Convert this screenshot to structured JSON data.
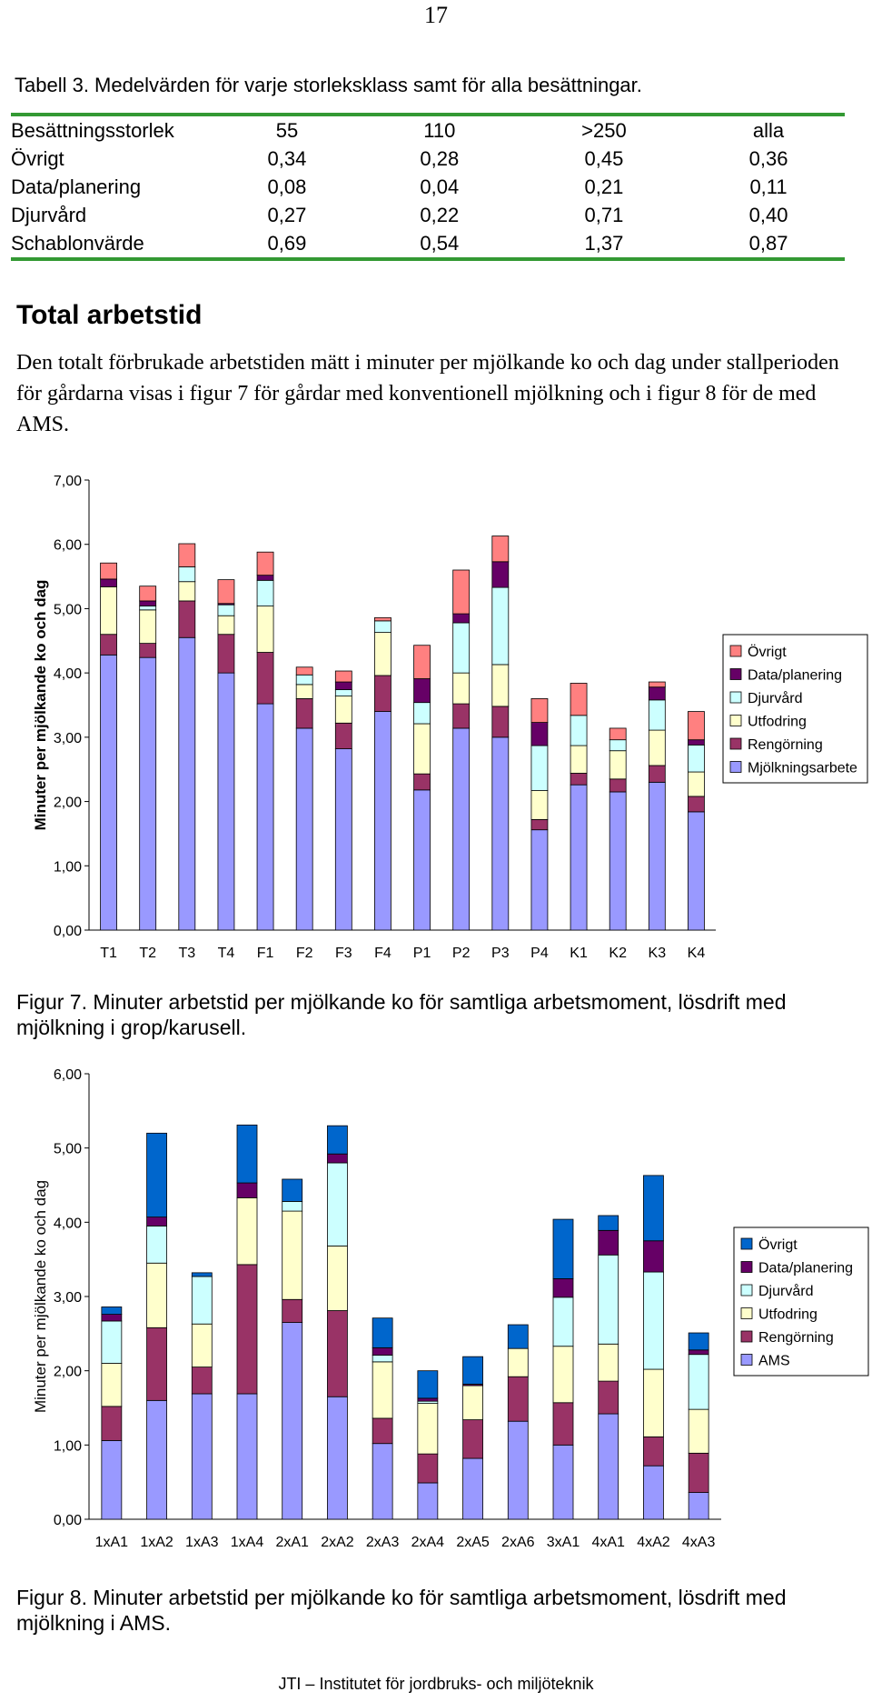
{
  "page": {
    "number": "17",
    "footer": "JTI – Institutet för jordbruks- och miljöteknik"
  },
  "table": {
    "caption": "Tabell 3. Medelvärden för varje storleksklass samt för alla besättningar.",
    "header": [
      "Besättningsstorlek",
      "55",
      "110",
      ">250",
      "alla"
    ],
    "rows": [
      [
        "Övrigt",
        "0,34",
        "0,28",
        "0,45",
        "0,36"
      ],
      [
        "Data/planering",
        "0,08",
        "0,04",
        "0,21",
        "0,11"
      ],
      [
        "Djurvård",
        "0,27",
        "0,22",
        "0,71",
        "0,40"
      ],
      [
        "Schablonvärde",
        "0,69",
        "0,54",
        "1,37",
        "0,87"
      ]
    ]
  },
  "section": {
    "heading": "Total arbetstid",
    "body": "Den totalt förbrukade arbetstiden mätt i minuter per mjölkande ko och dag under stallperioden för gårdarna visas i figur 7 för gårdar med konventionell mjölkning och i figur 8 för de med AMS."
  },
  "figure7_caption": "Figur 7. Minuter arbetstid per mjölkande ko för samtliga arbetsmoment, lösdrift med mjölkning i grop/karusell.",
  "figure8_caption": "Figur 8. Minuter arbetstid per mjölkande ko för samtliga arbetsmoment, lösdrift med mjölkning i AMS.",
  "chart_data": [
    {
      "type": "bar",
      "stacked": true,
      "title": "",
      "xlabel": "",
      "ylabel": "Minuter per mjölkande ko och dag",
      "ylim": [
        0,
        7
      ],
      "yticks": [
        "0,00",
        "1,00",
        "2,00",
        "3,00",
        "4,00",
        "5,00",
        "6,00",
        "7,00"
      ],
      "categories": [
        "T1",
        "T2",
        "T3",
        "T4",
        "F1",
        "F2",
        "F3",
        "F4",
        "P1",
        "P2",
        "P3",
        "P4",
        "K1",
        "K2",
        "K3",
        "K4"
      ],
      "legend_position": "right",
      "series": [
        {
          "name": "Mjölkningsarbete",
          "color": "#9999ff",
          "values": [
            4.28,
            4.24,
            4.55,
            4.0,
            3.52,
            3.14,
            2.82,
            3.4,
            2.18,
            3.14,
            3.0,
            1.56,
            2.26,
            2.15,
            2.3,
            1.84
          ]
        },
        {
          "name": "Rengörning",
          "color": "#993366",
          "values": [
            0.32,
            0.22,
            0.57,
            0.6,
            0.8,
            0.46,
            0.4,
            0.56,
            0.25,
            0.38,
            0.48,
            0.16,
            0.18,
            0.2,
            0.26,
            0.24
          ]
        },
        {
          "name": "Utfodring",
          "color": "#ffffcc",
          "values": [
            0.74,
            0.52,
            0.3,
            0.29,
            0.72,
            0.22,
            0.42,
            0.67,
            0.78,
            0.48,
            0.65,
            0.45,
            0.43,
            0.44,
            0.55,
            0.38
          ]
        },
        {
          "name": "Djurvård",
          "color": "#ccffff",
          "values": [
            0.0,
            0.06,
            0.23,
            0.17,
            0.4,
            0.15,
            0.1,
            0.18,
            0.33,
            0.78,
            1.2,
            0.7,
            0.47,
            0.17,
            0.47,
            0.42
          ]
        },
        {
          "name": "Data/planering",
          "color": "#660066",
          "values": [
            0.12,
            0.08,
            0.0,
            0.02,
            0.08,
            0.0,
            0.12,
            0.0,
            0.37,
            0.14,
            0.4,
            0.36,
            0.0,
            0.0,
            0.2,
            0.08
          ]
        },
        {
          "name": "Övrigt",
          "color": "#ff8080",
          "values": [
            0.25,
            0.23,
            0.36,
            0.37,
            0.36,
            0.12,
            0.17,
            0.05,
            0.52,
            0.68,
            0.4,
            0.37,
            0.5,
            0.18,
            0.08,
            0.44
          ]
        }
      ]
    },
    {
      "type": "bar",
      "stacked": true,
      "title": "",
      "xlabel": "",
      "ylabel": "Minuter per mjölkande ko och dag",
      "ylim": [
        0,
        6
      ],
      "yticks": [
        "0,00",
        "1,00",
        "2,00",
        "3,00",
        "4,00",
        "5,00",
        "6,00"
      ],
      "categories": [
        "1xA1",
        "1xA2",
        "1xA3",
        "1xA4",
        "2xA1",
        "2xA2",
        "2xA3",
        "2xA4",
        "2xA5",
        "2xA6",
        "3xA1",
        "4xA1",
        "4xA2",
        "4xA3"
      ],
      "legend_position": "right",
      "series": [
        {
          "name": "AMS",
          "color": "#9999ff",
          "values": [
            1.06,
            1.6,
            1.69,
            1.69,
            2.65,
            1.65,
            1.02,
            0.49,
            0.82,
            1.32,
            1.0,
            1.42,
            0.72,
            0.36
          ]
        },
        {
          "name": "Rengörning",
          "color": "#993366",
          "values": [
            0.46,
            0.98,
            0.36,
            1.74,
            0.31,
            1.16,
            0.34,
            0.39,
            0.52,
            0.6,
            0.57,
            0.44,
            0.39,
            0.53
          ]
        },
        {
          "name": "Utfodring",
          "color": "#ffffcc",
          "values": [
            0.58,
            0.87,
            0.58,
            0.9,
            1.19,
            0.87,
            0.76,
            0.68,
            0.46,
            0.38,
            0.76,
            0.5,
            0.91,
            0.59
          ]
        },
        {
          "name": "Djurvård",
          "color": "#ccffff",
          "values": [
            0.57,
            0.5,
            0.64,
            0.0,
            0.13,
            1.12,
            0.09,
            0.03,
            0.0,
            0.0,
            0.66,
            1.2,
            1.31,
            0.74
          ]
        },
        {
          "name": "Data/planering",
          "color": "#660066",
          "values": [
            0.09,
            0.12,
            0.0,
            0.2,
            0.0,
            0.12,
            0.1,
            0.04,
            0.02,
            0.0,
            0.25,
            0.33,
            0.42,
            0.06
          ]
        },
        {
          "name": "Övrigt",
          "color": "#0066cc",
          "values": [
            0.1,
            1.13,
            0.05,
            0.78,
            0.3,
            0.38,
            0.4,
            0.37,
            0.37,
            0.32,
            0.8,
            0.2,
            0.88,
            0.23
          ]
        }
      ]
    }
  ]
}
